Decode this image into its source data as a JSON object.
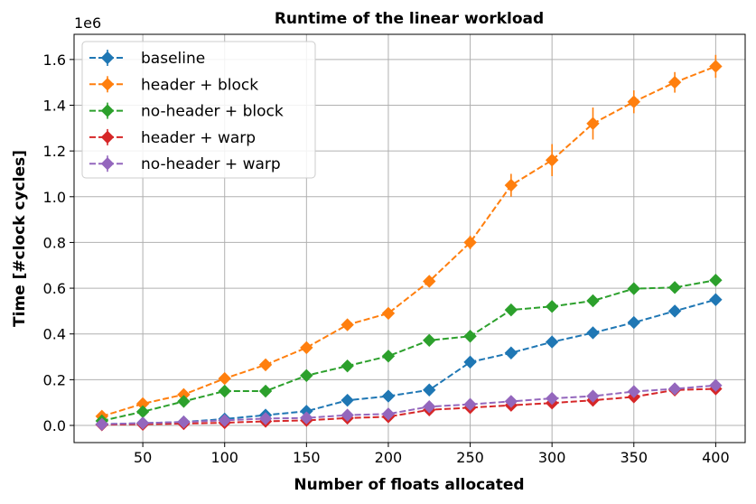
{
  "chart_data": {
    "type": "line",
    "title": "Runtime of the linear workload",
    "xlabel": "Number of floats allocated",
    "ylabel": "Time [#clock cycles]",
    "y_offset_label": "1e6",
    "xlim": [
      8,
      418
    ],
    "ylim": [
      -0.075,
      1.71
    ],
    "y_scale": 1000000,
    "xticks": [
      50,
      100,
      150,
      200,
      250,
      300,
      350,
      400
    ],
    "yticks": [
      0.0,
      0.2,
      0.4,
      0.6,
      0.8,
      1.0,
      1.2,
      1.4,
      1.6
    ],
    "ytick_labels": [
      "0.0",
      "0.2",
      "0.4",
      "0.6",
      "0.8",
      "1.0",
      "1.2",
      "1.4",
      "1.6"
    ],
    "grid": true,
    "legend_position": "top-left",
    "marker": "diamond",
    "line_style": "dashed",
    "x": [
      25,
      50,
      75,
      100,
      125,
      150,
      175,
      200,
      225,
      250,
      275,
      300,
      325,
      350,
      375,
      400
    ],
    "series": [
      {
        "name": "baseline",
        "color": "#1f77b4",
        "values": [
          0.005,
          0.01,
          0.015,
          0.028,
          0.045,
          0.062,
          0.11,
          0.128,
          0.155,
          0.277,
          0.317,
          0.365,
          0.405,
          0.45,
          0.5,
          0.55
        ],
        "errors": [
          0.003,
          0.004,
          0.005,
          0.006,
          0.008,
          0.01,
          0.012,
          0.012,
          0.014,
          0.016,
          0.016,
          0.016,
          0.018,
          0.02,
          0.022,
          0.025
        ]
      },
      {
        "name": "header + block",
        "color": "#ff7f0e",
        "values": [
          0.04,
          0.095,
          0.135,
          0.205,
          0.265,
          0.34,
          0.44,
          0.49,
          0.63,
          0.8,
          1.05,
          1.16,
          1.32,
          1.415,
          1.5,
          1.57
        ],
        "errors": [
          0.01,
          0.012,
          0.012,
          0.015,
          0.015,
          0.018,
          0.02,
          0.02,
          0.025,
          0.03,
          0.05,
          0.07,
          0.07,
          0.05,
          0.045,
          0.05
        ]
      },
      {
        "name": "no-header + block",
        "color": "#2ca02c",
        "values": [
          0.02,
          0.06,
          0.105,
          0.15,
          0.15,
          0.218,
          0.26,
          0.303,
          0.372,
          0.39,
          0.505,
          0.52,
          0.545,
          0.598,
          0.603,
          0.635
        ],
        "errors": [
          0.005,
          0.008,
          0.01,
          0.012,
          0.012,
          0.014,
          0.015,
          0.016,
          0.018,
          0.018,
          0.02,
          0.02,
          0.02,
          0.022,
          0.022,
          0.022
        ]
      },
      {
        "name": "header + warp",
        "color": "#d62728",
        "values": [
          0.003,
          0.005,
          0.008,
          0.012,
          0.018,
          0.022,
          0.032,
          0.038,
          0.068,
          0.078,
          0.088,
          0.098,
          0.11,
          0.125,
          0.155,
          0.16
        ],
        "errors": [
          0.002,
          0.003,
          0.003,
          0.004,
          0.005,
          0.006,
          0.007,
          0.008,
          0.01,
          0.01,
          0.012,
          0.012,
          0.014,
          0.015,
          0.018,
          0.018
        ]
      },
      {
        "name": "no-header + warp",
        "color": "#9467bd",
        "values": [
          0.005,
          0.01,
          0.015,
          0.022,
          0.03,
          0.033,
          0.045,
          0.05,
          0.082,
          0.092,
          0.105,
          0.118,
          0.128,
          0.148,
          0.16,
          0.175
        ],
        "errors": [
          0.002,
          0.003,
          0.003,
          0.004,
          0.005,
          0.006,
          0.007,
          0.008,
          0.01,
          0.01,
          0.012,
          0.012,
          0.014,
          0.015,
          0.018,
          0.018
        ]
      }
    ]
  }
}
